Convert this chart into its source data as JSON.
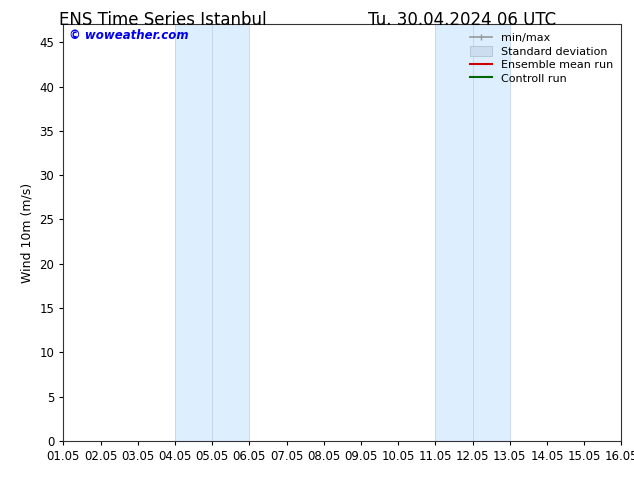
{
  "title_left": "ENS Time Series Istanbul",
  "title_right": "Tu. 30.04.2024 06 UTC",
  "ylabel": "Wind 10m (m/s)",
  "watermark": "© woweather.com",
  "watermark_color": "#0000ee",
  "xlim_start": 0,
  "xlim_end": 15,
  "ylim_min": 0,
  "ylim_max": 47,
  "yticks": [
    0,
    5,
    10,
    15,
    20,
    25,
    30,
    35,
    40,
    45
  ],
  "xtick_labels": [
    "01.05",
    "02.05",
    "03.05",
    "04.05",
    "05.05",
    "06.05",
    "07.05",
    "08.05",
    "09.05",
    "10.05",
    "11.05",
    "12.05",
    "13.05",
    "14.05",
    "15.05",
    "16.05"
  ],
  "shaded_regions": [
    {
      "xstart": 3,
      "xend": 5,
      "color": "#ddeeff"
    },
    {
      "xstart": 10,
      "xend": 12,
      "color": "#ddeeff"
    }
  ],
  "shade_border_lines": [
    3,
    4,
    5,
    10,
    11,
    12
  ],
  "legend_entries": [
    {
      "label": "min/max",
      "color": "#999999",
      "lw": 1.2
    },
    {
      "label": "Standard deviation",
      "color": "#ccddf0",
      "lw": 8
    },
    {
      "label": "Ensemble mean run",
      "color": "#cc0000",
      "lw": 1.5
    },
    {
      "label": "Controll run",
      "color": "#006600",
      "lw": 1.5
    }
  ],
  "background_color": "#ffffff",
  "title_fontsize": 12,
  "label_fontsize": 9,
  "tick_fontsize": 8.5,
  "legend_fontsize": 8
}
